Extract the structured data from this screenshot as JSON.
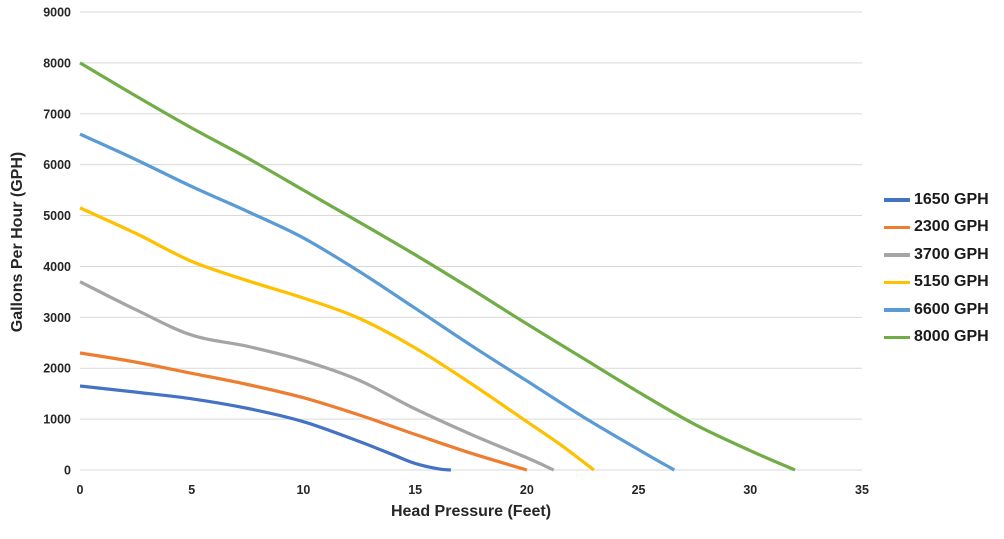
{
  "chart_data": {
    "type": "line",
    "title": "",
    "xlabel": "Head Pressure (Feet)",
    "ylabel": "Gallons Per Hour (GPH)",
    "xlim": [
      0,
      35
    ],
    "ylim": [
      0,
      9000
    ],
    "x_ticks": [
      "0",
      "5",
      "10",
      "15",
      "20",
      "25",
      "30",
      "35"
    ],
    "y_ticks": [
      "0",
      "1000",
      "2000",
      "3000",
      "4000",
      "5000",
      "6000",
      "7000",
      "8000",
      "9000"
    ],
    "grid": "horizontal-only",
    "gridline_color": "#d9d9d9",
    "background_color": "#ffffff",
    "legend_position": "right",
    "series": [
      {
        "name": "1650 GPH",
        "color": "#4472C4",
        "points": [
          [
            0,
            1650
          ],
          [
            2.5,
            1530
          ],
          [
            5,
            1400
          ],
          [
            7.5,
            1210
          ],
          [
            10,
            950
          ],
          [
            12.5,
            560
          ],
          [
            14,
            300
          ],
          [
            15,
            130
          ],
          [
            16,
            25
          ],
          [
            16.6,
            0
          ]
        ]
      },
      {
        "name": "2300 GPH",
        "color": "#ED7D31",
        "points": [
          [
            0,
            2300
          ],
          [
            2.5,
            2120
          ],
          [
            5,
            1900
          ],
          [
            7.5,
            1680
          ],
          [
            10,
            1420
          ],
          [
            12.5,
            1080
          ],
          [
            15,
            700
          ],
          [
            17.5,
            330
          ],
          [
            20,
            0
          ]
        ]
      },
      {
        "name": "3700 GPH",
        "color": "#A5A5A5",
        "points": [
          [
            0,
            3700
          ],
          [
            2.5,
            3150
          ],
          [
            5,
            2650
          ],
          [
            7.5,
            2430
          ],
          [
            10,
            2150
          ],
          [
            12.5,
            1760
          ],
          [
            15,
            1200
          ],
          [
            17.5,
            700
          ],
          [
            20,
            240
          ],
          [
            21.2,
            0
          ]
        ]
      },
      {
        "name": "5150 GPH",
        "color": "#FFC000",
        "points": [
          [
            0,
            5150
          ],
          [
            2.5,
            4650
          ],
          [
            5,
            4100
          ],
          [
            7.5,
            3720
          ],
          [
            10,
            3380
          ],
          [
            12.5,
            2980
          ],
          [
            15,
            2400
          ],
          [
            17.5,
            1700
          ],
          [
            20,
            950
          ],
          [
            21.5,
            500
          ],
          [
            23,
            0
          ]
        ]
      },
      {
        "name": "6600 GPH",
        "color": "#5B9BD5",
        "points": [
          [
            0,
            6600
          ],
          [
            2.5,
            6100
          ],
          [
            5,
            5570
          ],
          [
            7.5,
            5080
          ],
          [
            10,
            4560
          ],
          [
            12.5,
            3900
          ],
          [
            15,
            3180
          ],
          [
            17.5,
            2450
          ],
          [
            20,
            1750
          ],
          [
            22.5,
            1050
          ],
          [
            25,
            400
          ],
          [
            26.6,
            0
          ]
        ]
      },
      {
        "name": "8000 GPH",
        "color": "#70AD47",
        "points": [
          [
            0,
            8000
          ],
          [
            2.5,
            7350
          ],
          [
            5,
            6720
          ],
          [
            7.5,
            6130
          ],
          [
            10,
            5500
          ],
          [
            12.5,
            4870
          ],
          [
            15,
            4230
          ],
          [
            17.5,
            3560
          ],
          [
            20,
            2870
          ],
          [
            22.5,
            2200
          ],
          [
            25,
            1530
          ],
          [
            27.5,
            900
          ],
          [
            30,
            380
          ],
          [
            32,
            0
          ]
        ]
      }
    ]
  }
}
